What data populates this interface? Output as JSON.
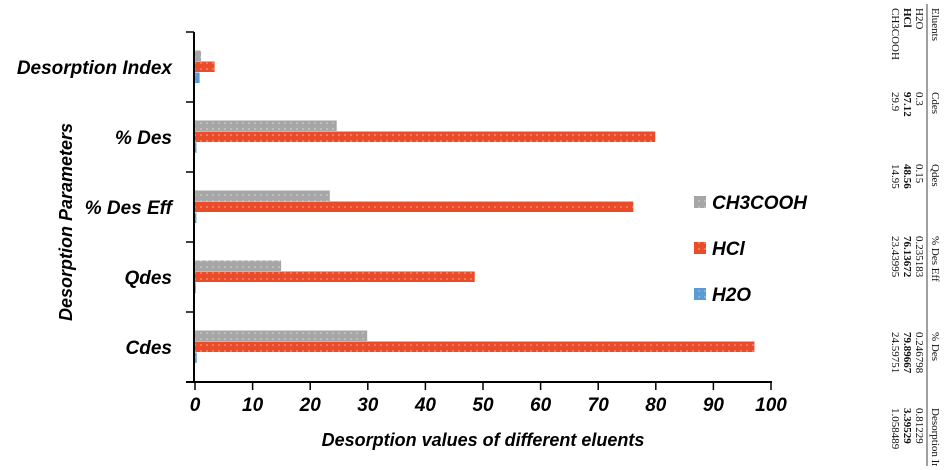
{
  "chart_data": {
    "type": "bar",
    "orientation": "horizontal",
    "categories": [
      "Desorption Index",
      "% Des",
      "% Des Eff",
      "Qdes",
      "Cdes"
    ],
    "series": [
      {
        "name": "CH3COOH",
        "values": [
          1.05,
          24.6,
          23.4,
          14.95,
          29.9
        ],
        "color": "#a6a6a6"
      },
      {
        "name": "HCl",
        "values": [
          3.4,
          79.9,
          76.1,
          48.56,
          97.12
        ],
        "color": "#ea4c2a"
      },
      {
        "name": "H2O",
        "values": [
          0.8,
          0.25,
          0.24,
          0.15,
          0.3
        ],
        "color": "#5b9bd5"
      }
    ],
    "xlim": [
      0,
      100
    ],
    "xticks": [
      "0",
      "10",
      "20",
      "30",
      "40",
      "50",
      "60",
      "70",
      "80",
      "90",
      "100"
    ],
    "xlabel": "Desorption values of different eluents",
    "ylabel": "Desorption Parameters",
    "legend": {
      "placement": "right",
      "order": [
        "CH3COOH",
        "HCl",
        "H2O"
      ]
    },
    "grid": false
  },
  "side_table": {
    "header": [
      "Eluents",
      "Cdes",
      "Qdes",
      "% Des Eff",
      "% Des",
      "Desorption Index"
    ],
    "rows": [
      [
        "H2O",
        "0.3",
        "0.15",
        "0.235183",
        "0.246798",
        "0.81229"
      ],
      [
        "HCl",
        "97.12",
        "48.56",
        "76.13672",
        "79.89667",
        "3.39529"
      ],
      [
        "CH3COOH",
        "29.9",
        "14.95",
        "23.43995",
        "24.59751",
        "1.058489"
      ]
    ],
    "bold_row": 1
  }
}
